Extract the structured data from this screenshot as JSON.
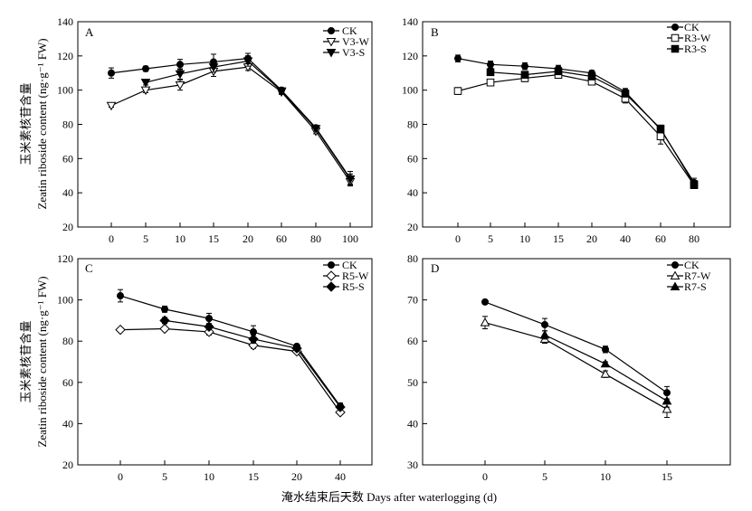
{
  "figure": {
    "y_axis_cn": "玉米素核苷含量",
    "y_axis_en": "Zeatin riboside content (ng·g⁻¹ FW)",
    "x_axis_label": "淹水结束后天数 Days after waterlogging (d)"
  },
  "chart_data": [
    {
      "type": "line",
      "panel_label": "A",
      "categories": [
        "0",
        "5",
        "10",
        "15",
        "20",
        "60",
        "80",
        "100"
      ],
      "ylim": [
        20,
        140
      ],
      "yticks": [
        20,
        40,
        60,
        80,
        100,
        120,
        140
      ],
      "legend_position": "top-right",
      "series": [
        {
          "name": "CK",
          "marker": "filled-circle",
          "x": [
            "0",
            "5",
            "10",
            "15",
            "20",
            "60",
            "80",
            "100"
          ],
          "values": [
            110,
            112.5,
            115,
            116.5,
            118.5,
            100,
            78,
            48.5
          ],
          "errors": [
            3,
            1.5,
            3,
            4.5,
            3,
            1.5,
            1.5,
            4
          ]
        },
        {
          "name": "V3-W",
          "marker": "open-triangle-down",
          "x": [
            "0",
            "5",
            "10",
            "15",
            "20",
            "60",
            "80",
            "100"
          ],
          "values": [
            91,
            100,
            103,
            111,
            113.5,
            99,
            76,
            46.5
          ],
          "errors": [
            1,
            1.5,
            3,
            3,
            2,
            1.5,
            1.5,
            2.5
          ]
        },
        {
          "name": "V3-S",
          "marker": "filled-triangle-down",
          "x": [
            "5",
            "10",
            "15",
            "20",
            "60",
            "80",
            "100"
          ],
          "values": [
            104.5,
            109.5,
            113.5,
            117,
            99.5,
            77.5,
            48
          ],
          "errors": [
            1.5,
            3,
            3,
            3,
            1.5,
            1.5,
            3
          ]
        }
      ]
    },
    {
      "type": "line",
      "panel_label": "B",
      "categories": [
        "0",
        "5",
        "10",
        "15",
        "20",
        "40",
        "60",
        "80"
      ],
      "ylim": [
        20,
        140
      ],
      "yticks": [
        20,
        40,
        60,
        80,
        100,
        120,
        140
      ],
      "legend_position": "top-right",
      "series": [
        {
          "name": "CK",
          "marker": "filled-circle",
          "x": [
            "0",
            "5",
            "10",
            "15",
            "20",
            "40",
            "60",
            "80"
          ],
          "values": [
            118.5,
            115,
            114,
            112.5,
            110,
            99,
            77,
            46
          ],
          "errors": [
            2,
            2,
            2,
            2,
            1.5,
            2,
            2.5,
            2.5
          ]
        },
        {
          "name": "R3-W",
          "marker": "open-square",
          "x": [
            "0",
            "5",
            "10",
            "15",
            "20",
            "40",
            "60",
            "80"
          ],
          "values": [
            99.5,
            104.5,
            107,
            109,
            105,
            95,
            73,
            44.5
          ],
          "errors": [
            2,
            1,
            2,
            1.5,
            2,
            2.5,
            4.5,
            2
          ]
        },
        {
          "name": "R3-S",
          "marker": "filled-square",
          "x": [
            "5",
            "10",
            "15",
            "20",
            "40",
            "60",
            "80"
          ],
          "values": [
            110.5,
            109,
            111,
            108,
            98,
            77.5,
            45
          ],
          "errors": [
            1.5,
            1.5,
            1.5,
            1.5,
            2,
            2,
            2
          ]
        }
      ]
    },
    {
      "type": "line",
      "panel_label": "C",
      "categories": [
        "0",
        "5",
        "10",
        "15",
        "20",
        "40"
      ],
      "ylim": [
        20,
        120
      ],
      "yticks": [
        20,
        40,
        60,
        80,
        100,
        120
      ],
      "legend_position": "top-right",
      "series": [
        {
          "name": "CK",
          "marker": "filled-circle",
          "x": [
            "0",
            "5",
            "10",
            "15",
            "20",
            "40"
          ],
          "values": [
            102,
            95.5,
            91,
            84.5,
            77.5,
            48.5
          ],
          "errors": [
            3,
            1.5,
            2.5,
            3,
            1,
            1.5
          ]
        },
        {
          "name": "R5-W",
          "marker": "open-diamond",
          "x": [
            "0",
            "5",
            "10",
            "15",
            "20",
            "40"
          ],
          "values": [
            85.5,
            86,
            84.5,
            78,
            75,
            45.5
          ],
          "errors": [
            1,
            1,
            1.5,
            1.5,
            1,
            1
          ]
        },
        {
          "name": "R5-S",
          "marker": "filled-diamond",
          "x": [
            "5",
            "10",
            "15",
            "20",
            "40"
          ],
          "values": [
            90,
            87,
            81,
            76.5,
            48
          ],
          "errors": [
            1.5,
            1.5,
            2,
            1,
            1
          ]
        }
      ]
    },
    {
      "type": "line",
      "panel_label": "D",
      "categories": [
        "0",
        "5",
        "10",
        "15"
      ],
      "ylim": [
        30,
        80
      ],
      "yticks": [
        30,
        40,
        50,
        60,
        70,
        80
      ],
      "legend_position": "top-right",
      "series": [
        {
          "name": "CK",
          "marker": "filled-circle",
          "x": [
            "0",
            "5",
            "10",
            "15"
          ],
          "values": [
            69.5,
            64,
            58,
            47.5
          ],
          "errors": [
            0.5,
            1.5,
            0.8,
            1.5
          ]
        },
        {
          "name": "R7-W",
          "marker": "open-triangle-up",
          "x": [
            "0",
            "5",
            "10",
            "15"
          ],
          "values": [
            64.5,
            60.5,
            52,
            43.5
          ],
          "errors": [
            1.5,
            1,
            0.8,
            2
          ]
        },
        {
          "name": "R7-S",
          "marker": "filled-triangle-up",
          "x": [
            "5",
            "10",
            "15"
          ],
          "values": [
            61.5,
            54.5,
            45.5
          ],
          "errors": [
            1,
            0.5,
            1.5
          ]
        }
      ]
    }
  ]
}
